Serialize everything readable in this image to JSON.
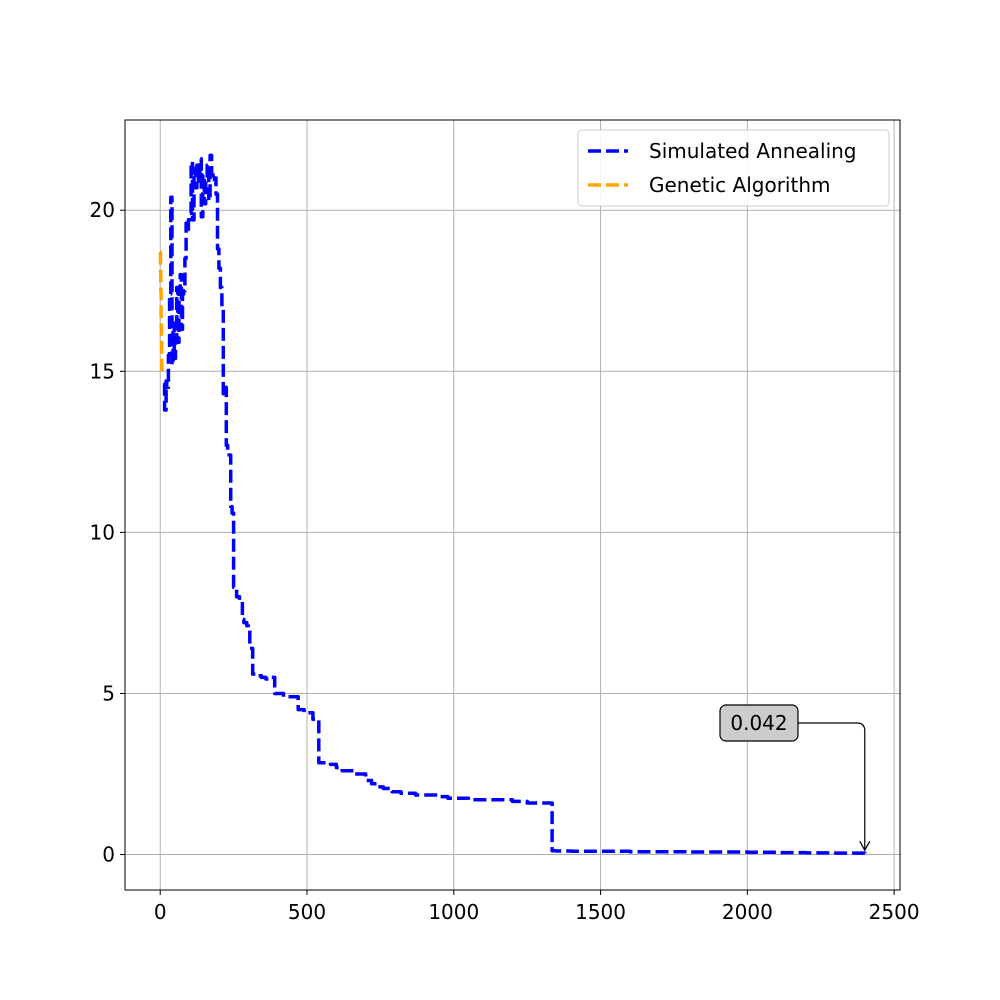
{
  "chart_data": {
    "type": "line",
    "title": "",
    "xlabel": "",
    "ylabel": "",
    "xlim": [
      -120,
      2520
    ],
    "ylim": [
      -1.1,
      22.8
    ],
    "grid": true,
    "legend_position": "top-right",
    "x_ticks": [
      0,
      500,
      1000,
      1500,
      2000,
      2500
    ],
    "y_ticks": [
      0,
      5,
      10,
      15,
      20
    ],
    "x_tick_labels": [
      "0",
      "500",
      "1000",
      "1500",
      "2000",
      "2500"
    ],
    "y_tick_labels": [
      "0",
      "5",
      "10",
      "15",
      "20"
    ],
    "series": [
      {
        "name": "Simulated Annealing",
        "color": "#0000ff",
        "style": "dashed",
        "x": [
          10,
          15,
          20,
          22,
          28,
          32,
          36,
          40,
          44,
          48,
          52,
          56,
          60,
          64,
          68,
          72,
          76,
          80,
          84,
          88,
          92,
          96,
          100,
          105,
          110,
          115,
          120,
          125,
          130,
          135,
          140,
          145,
          150,
          155,
          160,
          165,
          170,
          175,
          180,
          185,
          190,
          195,
          200,
          205,
          210,
          215,
          220,
          225,
          230,
          235,
          240,
          245,
          250,
          260,
          270,
          280,
          285,
          295,
          300,
          305,
          315,
          330,
          345,
          360,
          375,
          390,
          405,
          420,
          440,
          470,
          490,
          520,
          540,
          580,
          600,
          620,
          640,
          660,
          680,
          700,
          720,
          740,
          760,
          790,
          820,
          850,
          870,
          890,
          920,
          950,
          980,
          1000,
          1050,
          1100,
          1150,
          1200,
          1250,
          1300,
          1335,
          1350,
          1400,
          1500,
          1600,
          1700,
          1800,
          1900,
          2000,
          2100,
          2200,
          2300,
          2400
        ],
        "y": [
          14.6,
          13.8,
          14.7,
          14.5,
          15.5,
          17.4,
          20.4,
          15.2,
          16.5,
          15.4,
          16.0,
          17.6,
          15.9,
          17.6,
          18.0,
          16.3,
          17.4,
          17.5,
          18.5,
          19.6,
          19.4,
          19.7,
          19.9,
          21.5,
          19.7,
          21.3,
          20.7,
          21.4,
          20.9,
          21.6,
          19.8,
          21.1,
          20.2,
          20.9,
          21.4,
          20.3,
          21.7,
          21.1,
          20.9,
          21.0,
          20.5,
          18.8,
          18.2,
          17.6,
          17.0,
          14.3,
          14.5,
          12.7,
          12.5,
          12.4,
          10.8,
          10.6,
          8.3,
          8.0,
          7.9,
          7.3,
          7.2,
          7.1,
          7.0,
          6.4,
          5.6,
          5.55,
          5.5,
          5.45,
          5.5,
          5.0,
          5.0,
          4.9,
          4.9,
          4.5,
          4.4,
          4.2,
          2.85,
          2.8,
          2.7,
          2.6,
          2.6,
          2.5,
          2.5,
          2.3,
          2.2,
          2.1,
          2.05,
          1.95,
          1.9,
          1.9,
          1.85,
          1.85,
          1.85,
          1.8,
          1.75,
          1.75,
          1.7,
          1.7,
          1.7,
          1.65,
          1.6,
          1.6,
          0.12,
          0.11,
          0.1,
          0.1,
          0.09,
          0.09,
          0.08,
          0.08,
          0.07,
          0.06,
          0.05,
          0.045,
          0.042
        ]
      },
      {
        "name": "Genetic Algorithm",
        "color": "#ffa500",
        "style": "dashed",
        "x": [
          0,
          1,
          2,
          3,
          4,
          5,
          6
        ],
        "y": [
          18.7,
          18.1,
          17.5,
          16.4,
          15.9,
          15.2,
          14.9
        ]
      }
    ],
    "annotations": [
      {
        "text": "0.042",
        "x": 2400,
        "y": 0.042
      }
    ]
  }
}
